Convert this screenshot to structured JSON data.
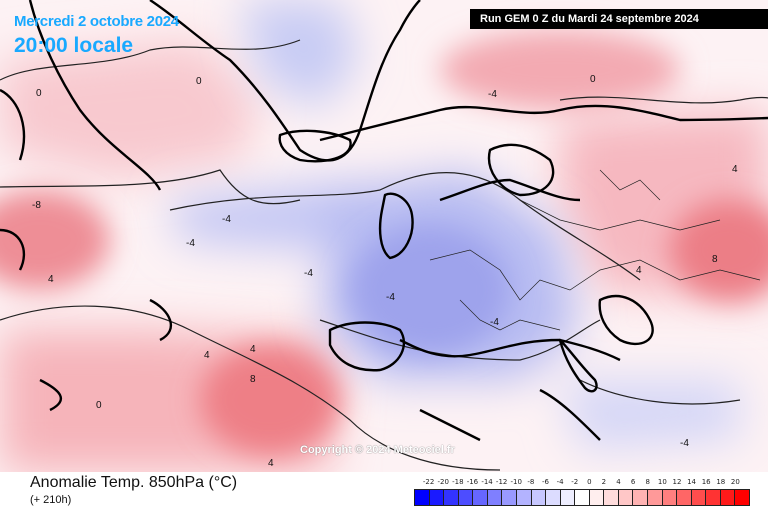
{
  "header": {
    "date": "Mercredi 2 octobre 2024",
    "time": "20:00 locale",
    "run": "Run GEM 0 Z du Mardi 24 septembre 2024"
  },
  "map": {
    "copyright": "Copyright © 2024 Meteociel.fr",
    "contour_labels": [
      "0",
      "-4",
      "4",
      "8",
      "-8"
    ]
  },
  "footer": {
    "title": "Anomalie Temp. 850hPa (°C)",
    "subtitle": "(+ 210h)"
  },
  "legend": {
    "labels": [
      "-22",
      "-20",
      "-18",
      "-16",
      "-14",
      "-12",
      "-10",
      "-8",
      "-6",
      "-4",
      "-2",
      "0",
      "2",
      "4",
      "6",
      "8",
      "10",
      "12",
      "14",
      "16",
      "18",
      "20"
    ],
    "colors": [
      "#0000ff",
      "#1a1aff",
      "#3333ff",
      "#4d4dff",
      "#6666ff",
      "#7f7fff",
      "#9999ff",
      "#b3b3ff",
      "#c7c7ff",
      "#dcdcff",
      "#eeeeff",
      "#ffffff",
      "#ffeeee",
      "#ffdcdc",
      "#ffc7c7",
      "#ffb3b3",
      "#ff9999",
      "#ff7f7f",
      "#ff6666",
      "#ff4d4d",
      "#ff3333",
      "#ff1a1a",
      "#ff0000"
    ]
  }
}
